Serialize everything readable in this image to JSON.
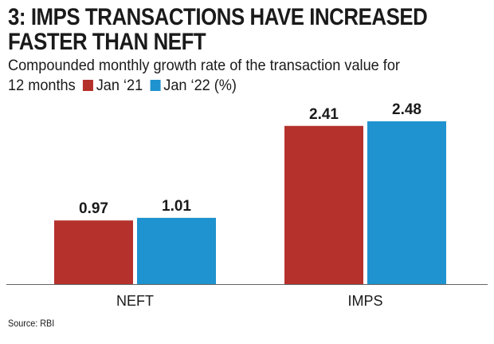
{
  "title_lines": [
    "3: IMPS TRANSACTIONS HAVE INCREASED",
    "FASTER THAN NEFT"
  ],
  "subtitle_lines": [
    "Compounded monthly growth rate of the transaction value for",
    "12 months"
  ],
  "source": "Source: RBI",
  "colors": {
    "jan21": "#b5312b",
    "jan22": "#1e93cf",
    "axis": "#666666",
    "text": "#1a1a1a"
  },
  "chart_data": {
    "type": "bar",
    "categories": [
      "NEFT",
      "IMPS"
    ],
    "series": [
      {
        "name": "Jan ‘21",
        "values": [
          0.97,
          2.41
        ],
        "labels": [
          "0.97",
          "2.41"
        ]
      },
      {
        "name": "Jan ‘22 (%)",
        "values": [
          1.01,
          2.48
        ],
        "labels": [
          "1.01",
          "2.48"
        ]
      }
    ],
    "title": "3: IMPS TRANSACTIONS HAVE INCREASED FASTER THAN NEFT",
    "subtitle": "Compounded monthly growth rate of the transaction value for 12 months",
    "xlabel": "",
    "ylabel": "",
    "ylim": [
      0,
      2.48
    ],
    "grid": false,
    "legend_position": "subtitle line"
  }
}
